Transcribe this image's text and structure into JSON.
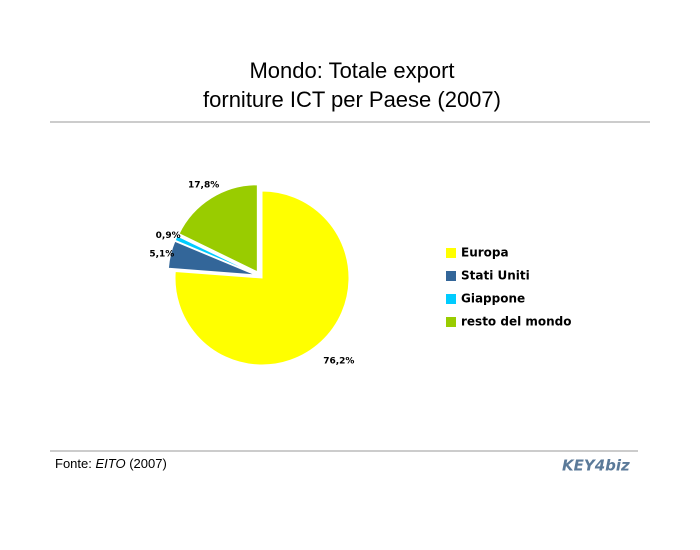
{
  "chart_data": {
    "type": "pie",
    "title": [
      "Mondo: Totale export",
      "forniture ICT per Paese (2007)"
    ],
    "categories": [
      "Europa",
      "Stati Uniti",
      "Giappone",
      "resto del mondo"
    ],
    "values": [
      76.2,
      5.1,
      0.9,
      17.8
    ],
    "value_labels": [
      "76,2%",
      "5,1%",
      "0,9%",
      "17,8%"
    ],
    "colors": [
      "#ffff00",
      "#336699",
      "#00ccff",
      "#99cc00"
    ],
    "legend": "right"
  },
  "footer": {
    "source_label": "Fonte:",
    "source": "EITO",
    "year": "(2007)",
    "logo": "KEY4biz"
  }
}
